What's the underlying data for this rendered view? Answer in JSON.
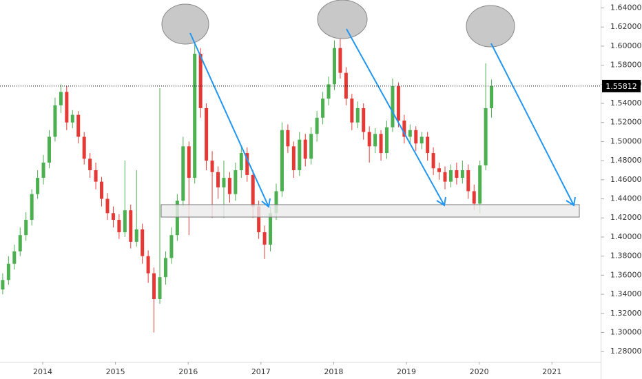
{
  "chart_data": {
    "type": "candlestick",
    "up_color": "#4caf50",
    "down_color": "#e53935",
    "xlim": [
      2013.413,
      2021.67
    ],
    "xticks": [
      2014,
      2015,
      2016,
      2017,
      2018,
      2019,
      2020,
      2021
    ],
    "ylim": [
      1.2693,
      1.6483
    ],
    "yticks": [
      {
        "value": 1.28,
        "label": "1.28000"
      },
      {
        "value": 1.3,
        "label": "1.30000"
      },
      {
        "value": 1.32,
        "label": "1.32000"
      },
      {
        "value": 1.34,
        "label": "1.34000"
      },
      {
        "value": 1.36,
        "label": "1.36000"
      },
      {
        "value": 1.38,
        "label": "1.38000"
      },
      {
        "value": 1.4,
        "label": "1.40000"
      },
      {
        "value": 1.42,
        "label": "1.42000"
      },
      {
        "value": 1.44,
        "label": "1.44000"
      },
      {
        "value": 1.46,
        "label": "1.46000"
      },
      {
        "value": 1.48,
        "label": "1.48000"
      },
      {
        "value": 1.5,
        "label": "1.50000"
      },
      {
        "value": 1.52,
        "label": "1.52000"
      },
      {
        "value": 1.54,
        "label": "1.54000"
      },
      {
        "value": 1.56,
        "label": "1.56000"
      },
      {
        "value": 1.58,
        "label": "1.58000"
      },
      {
        "value": 1.6,
        "label": "1.60000"
      },
      {
        "value": 1.62,
        "label": "1.62000"
      },
      {
        "value": 1.64,
        "label": "1.64000"
      }
    ],
    "last_price": {
      "value": 1.55812,
      "label": "1.55812"
    },
    "x": [
      2013.45,
      2013.53,
      2013.61,
      2013.69,
      2013.77,
      2013.85,
      2013.93,
      2014.01,
      2014.09,
      2014.17,
      2014.25,
      2014.33,
      2014.41,
      2014.49,
      2014.57,
      2014.65,
      2014.73,
      2014.81,
      2014.89,
      2014.97,
      2015.05,
      2015.13,
      2015.21,
      2015.29,
      2015.37,
      2015.45,
      2015.53,
      2015.61,
      2015.69,
      2015.77,
      2015.85,
      2015.93,
      2016.01,
      2016.09,
      2016.17,
      2016.25,
      2016.33,
      2016.41,
      2016.49,
      2016.57,
      2016.65,
      2016.73,
      2016.81,
      2016.89,
      2016.97,
      2017.05,
      2017.13,
      2017.21,
      2017.29,
      2017.37,
      2017.45,
      2017.53,
      2017.61,
      2017.69,
      2017.77,
      2017.85,
      2017.93,
      2018.01,
      2018.09,
      2018.17,
      2018.25,
      2018.33,
      2018.41,
      2018.49,
      2018.57,
      2018.65,
      2018.73,
      2018.81,
      2018.89,
      2018.97,
      2019.05,
      2019.13,
      2019.21,
      2019.29,
      2019.37,
      2019.45,
      2019.53,
      2019.61,
      2019.69,
      2019.77,
      2019.85,
      2019.93,
      2020.01,
      2020.09,
      2020.17
    ],
    "open": [
      1.345,
      1.355,
      1.372,
      1.385,
      1.402,
      1.418,
      1.445,
      1.462,
      1.478,
      1.505,
      1.538,
      1.552,
      1.52,
      1.528,
      1.505,
      1.482,
      1.47,
      1.458,
      1.44,
      1.425,
      1.418,
      1.405,
      1.428,
      1.395,
      1.408,
      1.38,
      1.362,
      1.335,
      1.358,
      1.378,
      1.402,
      1.438,
      1.495,
      1.462,
      1.592,
      1.535,
      1.48,
      1.468,
      1.452,
      1.462,
      1.445,
      1.47,
      1.488,
      1.465,
      1.432,
      1.405,
      1.392,
      1.425,
      1.448,
      1.512,
      1.495,
      1.47,
      1.502,
      1.482,
      1.508,
      1.525,
      1.545,
      1.56,
      1.598,
      1.572,
      1.545,
      1.52,
      1.535,
      1.51,
      1.495,
      1.508,
      1.488,
      1.515,
      1.558,
      1.522,
      1.505,
      1.512,
      1.498,
      1.505,
      1.488,
      1.472,
      1.468,
      1.458,
      1.47,
      1.462,
      1.47,
      1.448,
      1.435,
      1.475,
      1.535
    ],
    "high": [
      1.362,
      1.38,
      1.392,
      1.41,
      1.426,
      1.45,
      1.47,
      1.486,
      1.512,
      1.546,
      1.56,
      1.558,
      1.533,
      1.532,
      1.51,
      1.488,
      1.478,
      1.463,
      1.446,
      1.432,
      1.424,
      1.48,
      1.434,
      1.47,
      1.414,
      1.386,
      1.368,
      1.556,
      1.385,
      1.41,
      1.445,
      1.505,
      1.5,
      1.612,
      1.598,
      1.54,
      1.49,
      1.474,
      1.48,
      1.468,
      1.478,
      1.495,
      1.494,
      1.47,
      1.438,
      1.412,
      1.432,
      1.456,
      1.52,
      1.518,
      1.5,
      1.51,
      1.508,
      1.515,
      1.532,
      1.552,
      1.568,
      1.606,
      1.617,
      1.578,
      1.55,
      1.542,
      1.54,
      1.516,
      1.514,
      1.512,
      1.522,
      1.566,
      1.562,
      1.528,
      1.518,
      1.516,
      1.51,
      1.51,
      1.494,
      1.478,
      1.474,
      1.476,
      1.478,
      1.48,
      1.476,
      1.455,
      1.48,
      1.582,
      1.565
    ],
    "low": [
      1.34,
      1.35,
      1.366,
      1.38,
      1.396,
      1.412,
      1.44,
      1.455,
      1.472,
      1.5,
      1.53,
      1.512,
      1.514,
      1.498,
      1.476,
      1.462,
      1.45,
      1.432,
      1.418,
      1.41,
      1.398,
      1.4,
      1.388,
      1.39,
      1.372,
      1.352,
      1.3,
      1.33,
      1.35,
      1.372,
      1.396,
      1.432,
      1.402,
      1.456,
      1.525,
      1.47,
      1.42,
      1.44,
      1.42,
      1.436,
      1.438,
      1.462,
      1.458,
      1.42,
      1.398,
      1.377,
      1.385,
      1.418,
      1.442,
      1.488,
      1.462,
      1.464,
      1.474,
      1.476,
      1.5,
      1.518,
      1.538,
      1.554,
      1.566,
      1.538,
      1.512,
      1.514,
      1.502,
      1.478,
      1.488,
      1.48,
      1.482,
      1.51,
      1.515,
      1.498,
      1.498,
      1.49,
      1.492,
      1.48,
      1.465,
      1.46,
      1.45,
      1.452,
      1.455,
      1.456,
      1.44,
      1.428,
      1.425,
      1.47,
      1.525
    ],
    "close": [
      1.355,
      1.372,
      1.385,
      1.402,
      1.418,
      1.445,
      1.462,
      1.478,
      1.505,
      1.538,
      1.552,
      1.52,
      1.528,
      1.505,
      1.482,
      1.47,
      1.458,
      1.44,
      1.425,
      1.418,
      1.405,
      1.428,
      1.395,
      1.408,
      1.38,
      1.362,
      1.335,
      1.358,
      1.378,
      1.402,
      1.438,
      1.495,
      1.462,
      1.592,
      1.535,
      1.48,
      1.468,
      1.452,
      1.462,
      1.445,
      1.47,
      1.488,
      1.465,
      1.432,
      1.405,
      1.392,
      1.425,
      1.448,
      1.512,
      1.495,
      1.47,
      1.502,
      1.482,
      1.508,
      1.525,
      1.545,
      1.56,
      1.598,
      1.572,
      1.545,
      1.52,
      1.535,
      1.51,
      1.495,
      1.508,
      1.488,
      1.515,
      1.558,
      1.522,
      1.505,
      1.512,
      1.498,
      1.505,
      1.488,
      1.472,
      1.468,
      1.458,
      1.47,
      1.462,
      1.47,
      1.448,
      1.435,
      1.475,
      1.535,
      1.558
    ]
  }
}
